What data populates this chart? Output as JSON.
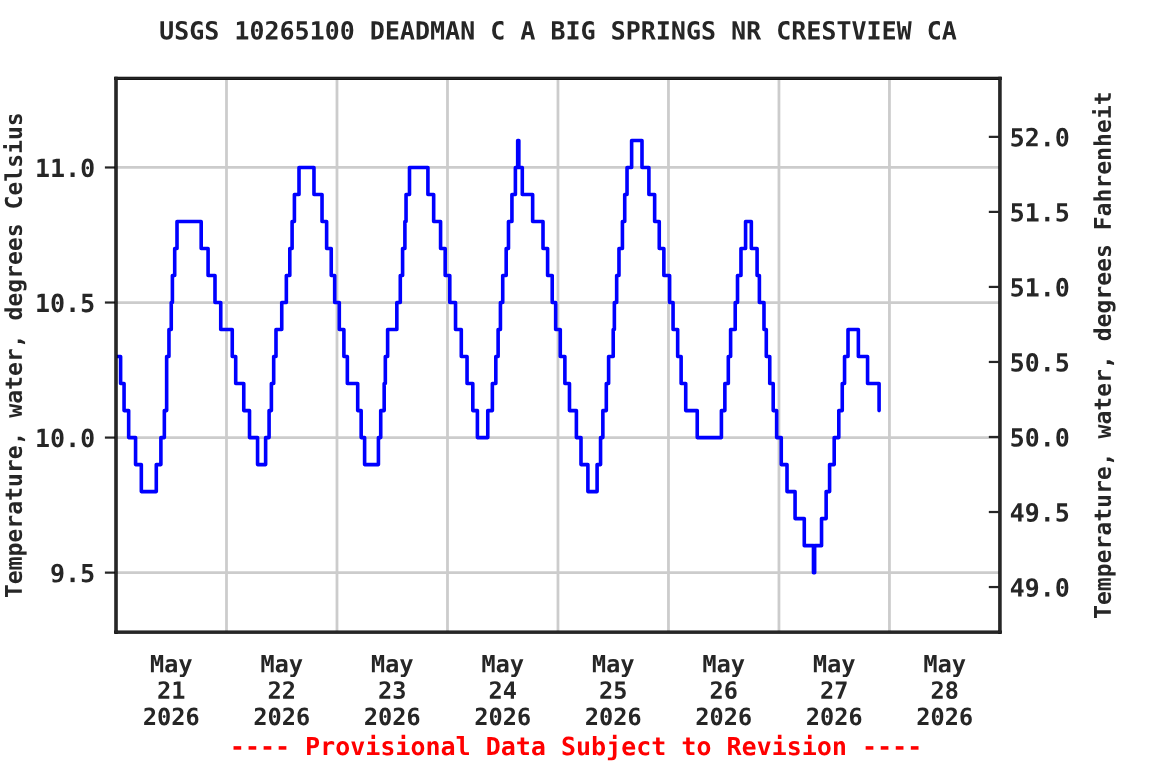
{
  "chart_data": {
    "type": "step",
    "title": "USGS 10265100 DEADMAN C A BIG SPRINGS NR CRESTVIEW CA",
    "ylabel": "Temperature, water, degrees Celsius",
    "y2label": "Temperature, water, degrees Fahrenheit",
    "annotations": [
      "---- Provisional Data Subject to Revision ----"
    ],
    "series": [
      {
        "color": "#0000ff",
        "x": [
          "2026-05-21T00:00",
          "2026-05-21T01:00",
          "2026-05-21T01:45",
          "2026-05-21T02:45",
          "2026-05-21T04:15",
          "2026-05-21T05:30",
          "2026-05-21T08:45",
          "2026-05-21T09:45",
          "2026-05-21T10:30",
          "2026-05-21T11:00",
          "2026-05-21T11:30",
          "2026-05-21T12:00",
          "2026-05-21T12:15",
          "2026-05-21T12:45",
          "2026-05-21T13:15",
          "2026-05-21T18:30",
          "2026-05-21T20:00",
          "2026-05-21T21:30",
          "2026-05-21T22:45",
          "2026-05-22T01:15",
          "2026-05-22T02:00",
          "2026-05-22T03:45",
          "2026-05-22T05:00",
          "2026-05-22T06:45",
          "2026-05-22T08:30",
          "2026-05-22T09:15",
          "2026-05-22T09:45",
          "2026-05-22T10:15",
          "2026-05-22T10:45",
          "2026-05-22T12:00",
          "2026-05-22T13:00",
          "2026-05-22T13:45",
          "2026-05-22T14:15",
          "2026-05-22T14:45",
          "2026-05-22T15:45",
          "2026-05-22T19:00",
          "2026-05-22T20:45",
          "2026-05-22T21:45",
          "2026-05-22T22:45",
          "2026-05-22T23:30",
          "2026-05-23T00:30",
          "2026-05-23T01:30",
          "2026-05-23T02:15",
          "2026-05-23T04:30",
          "2026-05-23T05:15",
          "2026-05-23T06:00",
          "2026-05-23T09:00",
          "2026-05-23T09:30",
          "2026-05-23T10:15",
          "2026-05-23T10:30",
          "2026-05-23T11:00",
          "2026-05-23T13:00",
          "2026-05-23T13:45",
          "2026-05-23T14:15",
          "2026-05-23T14:45",
          "2026-05-23T15:00",
          "2026-05-23T15:45",
          "2026-05-23T19:45",
          "2026-05-23T21:00",
          "2026-05-23T22:30",
          "2026-05-23T23:30",
          "2026-05-24T00:30",
          "2026-05-24T01:45",
          "2026-05-24T03:00",
          "2026-05-24T04:15",
          "2026-05-24T05:30",
          "2026-05-24T06:30",
          "2026-05-24T08:45",
          "2026-05-24T09:45",
          "2026-05-24T10:30",
          "2026-05-24T11:00",
          "2026-05-24T11:30",
          "2026-05-24T12:00",
          "2026-05-24T12:45",
          "2026-05-24T13:15",
          "2026-05-24T14:00",
          "2026-05-24T14:45",
          "2026-05-24T15:15",
          "2026-05-24T15:30",
          "2026-05-24T16:15",
          "2026-05-24T18:30",
          "2026-05-24T20:45",
          "2026-05-24T21:45",
          "2026-05-24T22:45",
          "2026-05-24T23:30",
          "2026-05-25T00:30",
          "2026-05-25T01:30",
          "2026-05-25T02:30",
          "2026-05-25T04:00",
          "2026-05-25T05:00",
          "2026-05-25T06:30",
          "2026-05-25T08:30",
          "2026-05-25T09:15",
          "2026-05-25T09:45",
          "2026-05-25T10:30",
          "2026-05-25T11:00",
          "2026-05-25T12:00",
          "2026-05-25T12:15",
          "2026-05-25T12:45",
          "2026-05-25T13:15",
          "2026-05-25T14:00",
          "2026-05-25T14:30",
          "2026-05-25T15:00",
          "2026-05-25T16:00",
          "2026-05-25T18:15",
          "2026-05-25T19:45",
          "2026-05-25T21:00",
          "2026-05-25T22:00",
          "2026-05-25T23:00",
          "2026-05-26T00:15",
          "2026-05-26T01:00",
          "2026-05-26T02:00",
          "2026-05-26T02:45",
          "2026-05-26T03:45",
          "2026-05-26T06:15",
          "2026-05-26T11:30",
          "2026-05-26T12:15",
          "2026-05-26T13:00",
          "2026-05-26T13:30",
          "2026-05-26T14:30",
          "2026-05-26T15:00",
          "2026-05-26T15:45",
          "2026-05-26T16:45",
          "2026-05-26T18:00",
          "2026-05-26T19:15",
          "2026-05-26T19:45",
          "2026-05-26T20:45",
          "2026-05-26T21:15",
          "2026-05-26T22:00",
          "2026-05-26T22:45",
          "2026-05-26T23:30",
          "2026-05-27T00:30",
          "2026-05-27T01:45",
          "2026-05-27T03:30",
          "2026-05-27T05:30",
          "2026-05-27T07:30",
          "2026-05-27T07:45",
          "2026-05-27T09:15",
          "2026-05-27T10:15",
          "2026-05-27T11:00",
          "2026-05-27T12:00",
          "2026-05-27T13:00",
          "2026-05-27T13:45",
          "2026-05-27T14:15",
          "2026-05-27T15:00",
          "2026-05-27T17:15",
          "2026-05-27T19:15",
          "2026-05-27T21:45"
        ],
        "values": [
          10.3,
          10.2,
          10.1,
          10.0,
          9.9,
          9.8,
          9.9,
          10.0,
          10.1,
          10.3,
          10.4,
          10.5,
          10.6,
          10.7,
          10.8,
          10.7,
          10.6,
          10.5,
          10.4,
          10.3,
          10.2,
          10.1,
          10.0,
          9.9,
          10.0,
          10.1,
          10.2,
          10.3,
          10.4,
          10.5,
          10.6,
          10.7,
          10.8,
          10.9,
          11.0,
          10.9,
          10.8,
          10.7,
          10.6,
          10.5,
          10.4,
          10.3,
          10.2,
          10.1,
          10.0,
          9.9,
          10.0,
          10.1,
          10.2,
          10.3,
          10.4,
          10.5,
          10.6,
          10.7,
          10.8,
          10.9,
          11.0,
          10.9,
          10.8,
          10.7,
          10.6,
          10.5,
          10.4,
          10.3,
          10.2,
          10.1,
          10.0,
          10.1,
          10.2,
          10.3,
          10.4,
          10.5,
          10.6,
          10.7,
          10.8,
          10.9,
          11.0,
          11.1,
          11.0,
          10.9,
          10.8,
          10.7,
          10.6,
          10.5,
          10.4,
          10.3,
          10.2,
          10.1,
          10.0,
          9.9,
          9.8,
          9.9,
          10.0,
          10.1,
          10.2,
          10.3,
          10.4,
          10.5,
          10.6,
          10.7,
          10.8,
          10.9,
          11.0,
          11.1,
          11.0,
          10.9,
          10.8,
          10.7,
          10.6,
          10.5,
          10.4,
          10.3,
          10.2,
          10.1,
          10.0,
          10.1,
          10.2,
          10.3,
          10.4,
          10.5,
          10.6,
          10.7,
          10.8,
          10.7,
          10.6,
          10.5,
          10.4,
          10.3,
          10.2,
          10.1,
          10.0,
          9.9,
          9.8,
          9.7,
          9.6,
          9.5,
          9.6,
          9.7,
          9.8,
          9.9,
          10.0,
          10.1,
          10.2,
          10.3,
          10.4,
          10.3,
          10.2,
          10.1
        ]
      }
    ],
    "xlim": [
      "2026-05-21T00:00",
      "2026-05-29T00:00"
    ],
    "xticks": [
      {
        "value": "2026-05-21T12:00",
        "label": "May\n21\n2026"
      },
      {
        "value": "2026-05-22T00:00",
        "label": null
      },
      {
        "value": "2026-05-22T12:00",
        "label": "May\n22\n2026"
      },
      {
        "value": "2026-05-23T00:00",
        "label": null
      },
      {
        "value": "2026-05-23T12:00",
        "label": "May\n23\n2026"
      },
      {
        "value": "2026-05-24T00:00",
        "label": null
      },
      {
        "value": "2026-05-24T12:00",
        "label": "May\n24\n2026"
      },
      {
        "value": "2026-05-25T00:00",
        "label": null
      },
      {
        "value": "2026-05-25T12:00",
        "label": "May\n25\n2026"
      },
      {
        "value": "2026-05-26T00:00",
        "label": null
      },
      {
        "value": "2026-05-26T12:00",
        "label": "May\n26\n2026"
      },
      {
        "value": "2026-05-27T00:00",
        "label": null
      },
      {
        "value": "2026-05-27T12:00",
        "label": "May\n27\n2026"
      },
      {
        "value": "2026-05-28T00:00",
        "label": null
      },
      {
        "value": "2026-05-28T12:00",
        "label": "May\n28\n2026"
      }
    ],
    "ylim": [
      9.28,
      11.33
    ],
    "yticks": [
      {
        "value": 9.5,
        "label": "9.5"
      },
      {
        "value": 10.0,
        "label": "10.0"
      },
      {
        "value": 10.5,
        "label": "10.5"
      },
      {
        "value": 11.0,
        "label": "11.0"
      }
    ],
    "y2lim": [
      48.7,
      52.39
    ],
    "y2ticks": [
      {
        "value": 49.0,
        "label": "49.0"
      },
      {
        "value": 49.5,
        "label": "49.5"
      },
      {
        "value": 50.0,
        "label": "50.0"
      },
      {
        "value": 50.5,
        "label": "50.5"
      },
      {
        "value": 51.0,
        "label": "51.0"
      },
      {
        "value": 51.5,
        "label": "51.5"
      },
      {
        "value": 52.0,
        "label": "52.0"
      }
    ],
    "grid": true,
    "legend": false
  }
}
